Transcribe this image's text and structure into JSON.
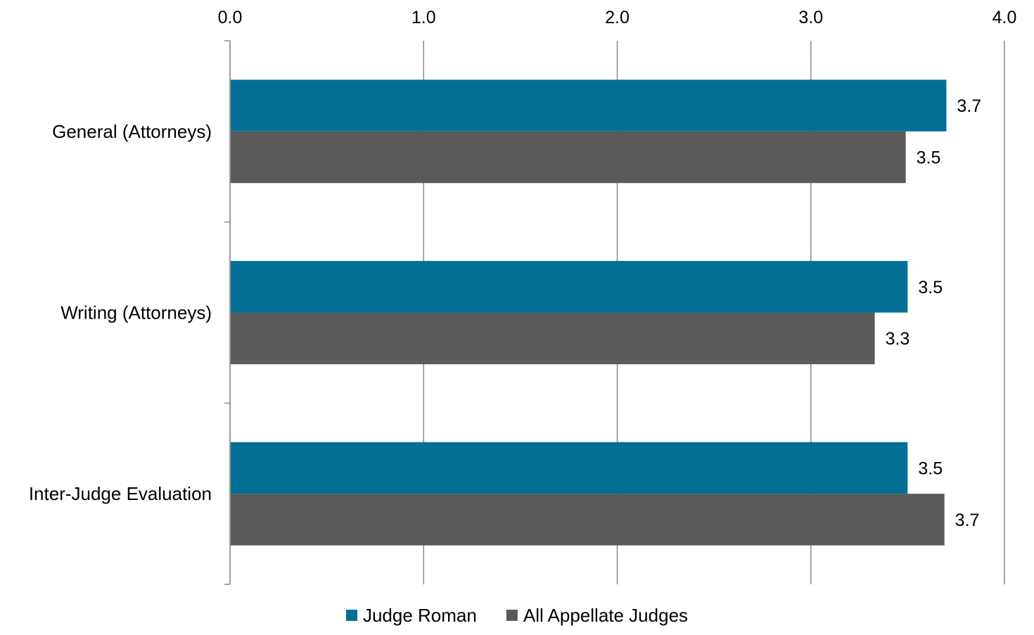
{
  "chart_data": {
    "type": "bar",
    "orientation": "horizontal",
    "title": "",
    "xlabel": "",
    "ylabel": "",
    "xlim": [
      0,
      4
    ],
    "ticks": [
      "0.0",
      "1.0",
      "2.0",
      "3.0",
      "4.0"
    ],
    "tick_values": [
      0,
      1,
      2,
      3,
      4
    ],
    "axis_position": "top",
    "grid": true,
    "categories": [
      "General (Attorneys)",
      "Writing (Attorneys)",
      "Inter-Judge Evaluation"
    ],
    "series": [
      {
        "name": "Judge Roman",
        "color": "#036f95",
        "values": [
          3.7,
          3.5,
          3.5
        ],
        "labels": [
          "3.7",
          "3.5",
          "3.5"
        ]
      },
      {
        "name": "All Appellate Judges",
        "color": "#5a5a5a",
        "values": [
          3.49,
          3.33,
          3.69
        ],
        "labels": [
          "3.5",
          "3.3",
          "3.7"
        ]
      }
    ],
    "legend_position": "bottom"
  }
}
